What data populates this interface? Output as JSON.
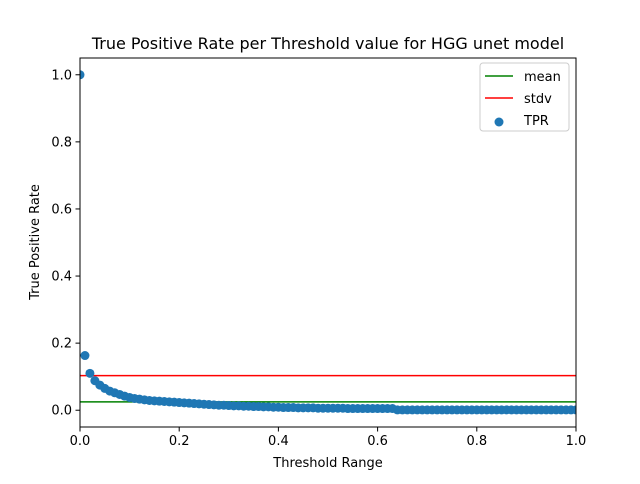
{
  "chart_data": {
    "type": "scatter",
    "title": "True Positive Rate per Threshold value for HGG unet model",
    "xlabel": "Threshold Range",
    "ylabel": "True Positive Rate",
    "xlim": [
      0.0,
      1.0
    ],
    "ylim": [
      -0.05,
      1.05
    ],
    "xticks": [
      "0.0",
      "0.2",
      "0.4",
      "0.6",
      "0.8",
      "1.0"
    ],
    "yticks": [
      "0.0",
      "0.2",
      "0.4",
      "0.6",
      "0.8",
      "1.0"
    ],
    "grid": false,
    "legend_position": "top-right",
    "series": [
      {
        "name": "TPR",
        "kind": "scatter",
        "color": "#1f77b4",
        "x": [
          0.0,
          0.01,
          0.02,
          0.03,
          0.04,
          0.05,
          0.06,
          0.07,
          0.08,
          0.09,
          0.1,
          0.11,
          0.12,
          0.13,
          0.14,
          0.15,
          0.16,
          0.17,
          0.18,
          0.19,
          0.2,
          0.21,
          0.22,
          0.23,
          0.24,
          0.25,
          0.26,
          0.27,
          0.28,
          0.29,
          0.3,
          0.31,
          0.32,
          0.33,
          0.34,
          0.35,
          0.36,
          0.37,
          0.38,
          0.39,
          0.4,
          0.41,
          0.42,
          0.43,
          0.44,
          0.45,
          0.46,
          0.47,
          0.48,
          0.49,
          0.5,
          0.51,
          0.52,
          0.53,
          0.54,
          0.55,
          0.56,
          0.57,
          0.58,
          0.59,
          0.6,
          0.61,
          0.62,
          0.63,
          0.64,
          0.65,
          0.66,
          0.67,
          0.68,
          0.69,
          0.7,
          0.71,
          0.72,
          0.73,
          0.74,
          0.75,
          0.76,
          0.77,
          0.78,
          0.79,
          0.8,
          0.81,
          0.82,
          0.83,
          0.84,
          0.85,
          0.86,
          0.87,
          0.88,
          0.89,
          0.9,
          0.91,
          0.92,
          0.93,
          0.94,
          0.95,
          0.96,
          0.97,
          0.98,
          0.99,
          1.0
        ],
        "values": [
          1.0,
          0.163,
          0.11,
          0.088,
          0.075,
          0.065,
          0.057,
          0.052,
          0.047,
          0.042,
          0.038,
          0.035,
          0.033,
          0.031,
          0.029,
          0.028,
          0.027,
          0.026,
          0.025,
          0.024,
          0.023,
          0.022,
          0.021,
          0.02,
          0.019,
          0.018,
          0.017,
          0.016,
          0.015,
          0.015,
          0.014,
          0.013,
          0.013,
          0.012,
          0.012,
          0.011,
          0.011,
          0.01,
          0.01,
          0.009,
          0.009,
          0.008,
          0.008,
          0.008,
          0.007,
          0.007,
          0.007,
          0.007,
          0.006,
          0.006,
          0.006,
          0.006,
          0.006,
          0.006,
          0.005,
          0.005,
          0.005,
          0.005,
          0.005,
          0.005,
          0.005,
          0.005,
          0.005,
          0.005,
          0.001,
          0.001,
          0.001,
          0.001,
          0.001,
          0.001,
          0.001,
          0.001,
          0.001,
          0.001,
          0.001,
          0.001,
          0.001,
          0.001,
          0.001,
          0.001,
          0.001,
          0.001,
          0.001,
          0.001,
          0.001,
          0.001,
          0.001,
          0.001,
          0.001,
          0.001,
          0.001,
          0.001,
          0.001,
          0.001,
          0.001,
          0.001,
          0.001,
          0.001,
          0.001,
          0.001,
          0.001
        ]
      },
      {
        "name": "mean",
        "kind": "hline",
        "color": "#008000",
        "y": 0.025
      },
      {
        "name": "stdv",
        "kind": "hline",
        "color": "#ff0000",
        "y": 0.103
      }
    ]
  }
}
